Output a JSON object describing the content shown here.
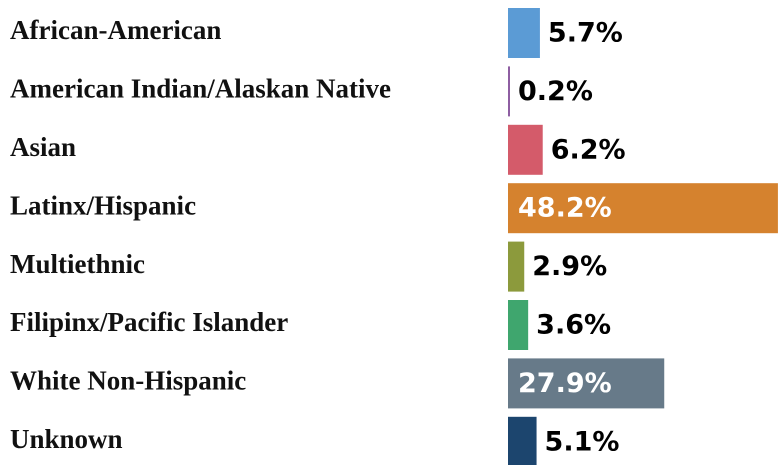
{
  "chart_data": {
    "type": "barh",
    "categories": [
      "African-American",
      "American Indian/Alaskan Native",
      "Asian",
      "Latinx/Hispanic",
      "Multiethnic",
      "Filipinx/Pacific Islander",
      "White Non-Hispanic",
      "Unknown"
    ],
    "values": [
      5.7,
      0.2,
      6.2,
      48.2,
      2.9,
      3.6,
      27.9,
      5.1
    ],
    "value_labels": [
      "5.7%",
      "0.2%",
      "6.2%",
      "48.2%",
      "2.9%",
      "3.6%",
      "27.9%",
      "5.1%"
    ],
    "colors": [
      "#5b9bd5",
      "#8e5ea2",
      "#d45b6a",
      "#d5822e",
      "#8c9a3c",
      "#3fa66e",
      "#677a89",
      "#1c456e"
    ]
  }
}
